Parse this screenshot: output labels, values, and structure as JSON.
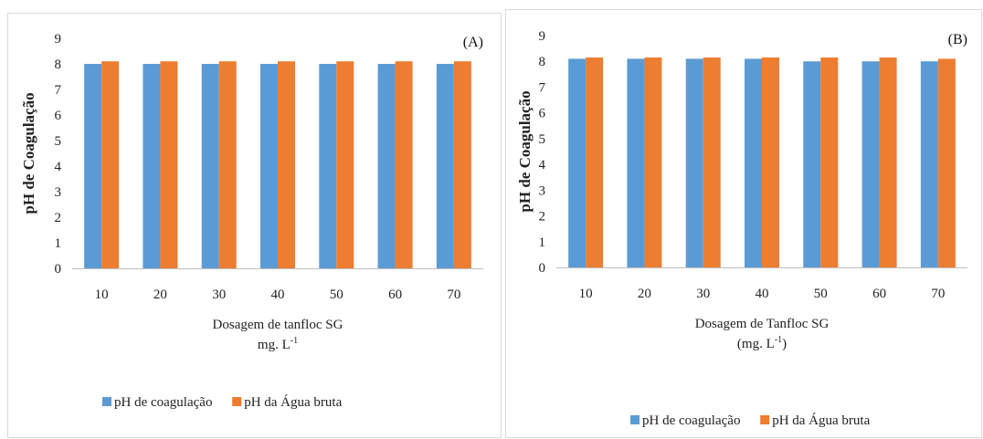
{
  "chart_data": [
    {
      "type": "bar",
      "panel_label": "(A)",
      "categories": [
        "10",
        "20",
        "30",
        "40",
        "50",
        "60",
        "70"
      ],
      "series": [
        {
          "name": "pH de coagulação",
          "values": [
            8.0,
            8.0,
            8.0,
            8.0,
            8.0,
            8.0,
            8.0
          ],
          "color": "#5b9bd5"
        },
        {
          "name": "pH da Água bruta",
          "values": [
            8.1,
            8.1,
            8.1,
            8.1,
            8.1,
            8.1,
            8.1
          ],
          "color": "#ed7d31"
        }
      ],
      "yticks": [
        "0",
        "1",
        "2",
        "3",
        "4",
        "5",
        "6",
        "7",
        "8",
        "9"
      ],
      "ylim": [
        0,
        9
      ],
      "ylabel": "pH de Coagulação",
      "xlabel_line1": "Dosagem de tanfloc SG",
      "xlabel_line2": "mg. L",
      "xlabel_sup": "-1",
      "xlabel_after": "",
      "legend_position": "bottom",
      "grid": false
    },
    {
      "type": "bar",
      "panel_label": "(B)",
      "categories": [
        "10",
        "20",
        "30",
        "40",
        "50",
        "60",
        "70"
      ],
      "series": [
        {
          "name": "pH de coagulação",
          "values": [
            8.1,
            8.1,
            8.1,
            8.1,
            8.0,
            8.0,
            8.0
          ],
          "color": "#5b9bd5"
        },
        {
          "name": "pH da Água bruta",
          "values": [
            8.15,
            8.15,
            8.15,
            8.15,
            8.15,
            8.15,
            8.1
          ],
          "color": "#ed7d31"
        }
      ],
      "yticks": [
        "0",
        "1",
        "2",
        "3",
        "4",
        "5",
        "6",
        "7",
        "8",
        "9"
      ],
      "ylim": [
        0,
        9
      ],
      "ylabel": "pH de Coagulação",
      "xlabel_line1": "Dosagem de Tanfloc SG",
      "xlabel_line2": "(mg. L",
      "xlabel_sup": "-1",
      "xlabel_after": ")",
      "legend_position": "bottom",
      "grid": false
    }
  ]
}
